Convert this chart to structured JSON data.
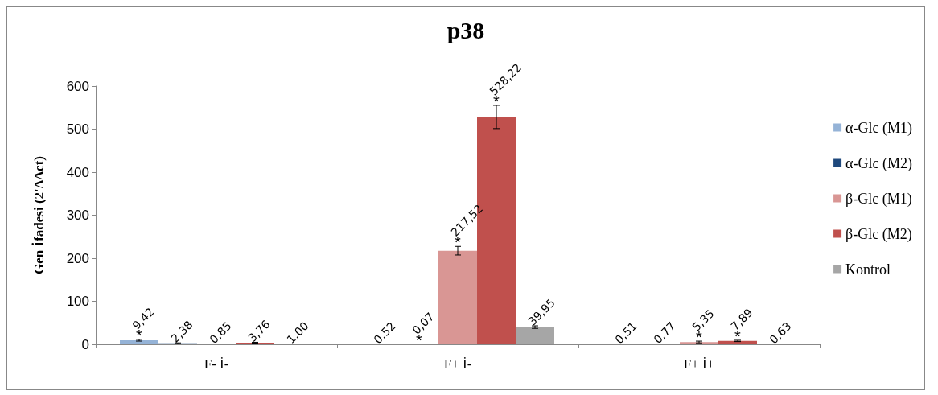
{
  "chart_data": {
    "type": "bar",
    "title": "p38",
    "ylabel": "Gen İfadesi (2'ΔΔct)",
    "categories": [
      "F- İ-",
      "F+ İ-",
      "F+ İ+"
    ],
    "series": [
      {
        "name": "α-Glc (M1)",
        "color": "#95b3d7",
        "values": [
          9.42,
          0.52,
          0.51
        ],
        "value_labels": [
          "9,42",
          "0,52",
          "0,51"
        ],
        "errors": [
          2,
          null,
          null
        ]
      },
      {
        "name": "α-Glc (M2)",
        "color": "#1f497d",
        "values": [
          2.38,
          0.07,
          0.77
        ],
        "value_labels": [
          "2,38",
          "0,07",
          "0,77"
        ],
        "errors": [
          1,
          null,
          null
        ]
      },
      {
        "name": "β-Glc (M1)",
        "color": "#d99694",
        "values": [
          0.85,
          217.52,
          5.35
        ],
        "value_labels": [
          "0,85",
          "217,52",
          "5,35"
        ],
        "errors": [
          null,
          10,
          2
        ]
      },
      {
        "name": "β-Glc (M2)",
        "color": "#c0504d",
        "values": [
          3.76,
          528.22,
          7.89
        ],
        "value_labels": [
          "3,76",
          "528,22",
          "7,89"
        ],
        "errors": [
          1,
          27,
          1.5
        ]
      },
      {
        "name": "Kontrol",
        "color": "#a6a6a6",
        "values": [
          1.0,
          39.95,
          0.63
        ],
        "value_labels": [
          "1,00",
          "39,95",
          "0,63"
        ],
        "errors": [
          null,
          3,
          null
        ]
      }
    ],
    "annotations": [
      {
        "text": "*",
        "y": 9.42
      },
      {
        "text": "*",
        "y": 0.07
      },
      {
        "text": "*",
        "y": 217.52
      },
      {
        "text": "*",
        "y": 528.22
      },
      {
        "text": "*",
        "y": 5.35
      },
      {
        "text": "*",
        "y": 7.89
      }
    ],
    "ylim": [
      0,
      600
    ],
    "yticks": [
      0,
      100,
      200,
      300,
      400,
      500,
      600
    ],
    "grid": false,
    "legend": "right"
  }
}
